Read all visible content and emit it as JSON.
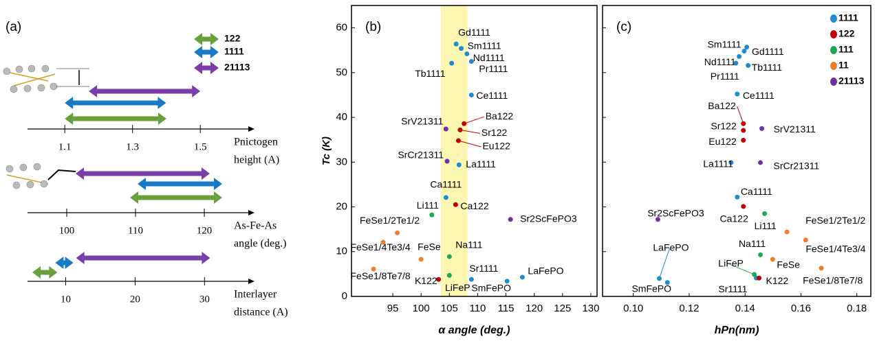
{
  "chart_data": [
    {
      "type": "range",
      "panel_label": "(a)",
      "series": [
        {
          "name": "122",
          "color": "#6a9f3a"
        },
        {
          "name": "1111",
          "color": "#1a7ac4"
        },
        {
          "name": "21113",
          "color": "#7a3ea8"
        }
      ],
      "axes": [
        {
          "label": [
            "Pnictogen",
            "height (A)"
          ],
          "xlim": [
            0.99,
            1.66
          ],
          "xticks": [
            1.1,
            1.3,
            1.5
          ],
          "ranges": [
            [
              1.1,
              1.4
            ],
            [
              1.1,
              1.399
            ],
            [
              1.171,
              1.5
            ]
          ]
        },
        {
          "label": [
            "As-Fe-As",
            "angle (deg.)"
          ],
          "xlim": [
            94.3,
            127.3
          ],
          "xticks": [
            100,
            110,
            120
          ],
          "ranges": [
            [
              109.2,
              122.6
            ],
            [
              110.3,
              122.6
            ],
            [
              101.3,
              120.8
            ]
          ]
        },
        {
          "label": [
            "Interlayer",
            "distance (A)"
          ],
          "xlim": [
            4.5,
            37.2
          ],
          "xticks": [
            10,
            20,
            30
          ],
          "ranges": [
            [
              5.2,
              8.8
            ],
            [
              8.5,
              11.1
            ],
            [
              11.5,
              30.8
            ]
          ]
        }
      ]
    },
    {
      "type": "scatter",
      "panel_label": "(b)",
      "xlabel": "α angle (deg.)",
      "ylabel": "Tc (K)",
      "xlim": [
        87.7,
        131.1
      ],
      "ylim": [
        0,
        65
      ],
      "xticks": [
        95,
        100,
        105,
        110,
        115,
        120,
        125,
        130
      ],
      "yticks": [
        0,
        10,
        20,
        30,
        40,
        50,
        60
      ],
      "highlight": [
        103.5,
        108.2
      ],
      "highlight_color": "#fbf7b0",
      "series": [
        {
          "color": "#1f8ccf",
          "labels": [
            "Gd1111",
            "Sm1111",
            "Nd1111",
            "Tb1111",
            "Pr1111",
            "Ce1111",
            "La1111",
            "Ca1111",
            "Sr1111",
            "LaFePO",
            "SmFePO"
          ],
          "x": [
            106.2,
            107.1,
            108.1,
            105.4,
            108.9,
            108.9,
            106.7,
            104.4,
            108.9,
            117.9,
            115.2
          ],
          "values": [
            56.4,
            55.4,
            54.2,
            52.1,
            52.5,
            45.0,
            29.4,
            22.1,
            3.8,
            4.3,
            3.4
          ]
        },
        {
          "color": "#c00000",
          "labels": [
            "Ba122",
            "Sr122",
            "Eu122",
            "Ca122",
            "K122"
          ],
          "x": [
            107.6,
            106.9,
            106.6,
            106.1,
            103.1
          ],
          "values": [
            38.6,
            37.2,
            34.8,
            20.5,
            3.8
          ]
        },
        {
          "color": "#1aaa55",
          "labels": [
            "Li111",
            "Na111",
            "LiFeP"
          ],
          "x": [
            101.9,
            105.0,
            105.0
          ],
          "values": [
            18.2,
            8.9,
            4.7
          ]
        },
        {
          "color": "#ed7d31",
          "labels": [
            "FeSe1/2Te1/2",
            "FeSe1/4Te3/4",
            "FeSe",
            "FeSe1/8Te7/8"
          ],
          "x": [
            95.8,
            93.3,
            100.0,
            91.6
          ],
          "values": [
            14.2,
            12.1,
            8.3,
            6.1
          ]
        },
        {
          "color": "#7030a0",
          "labels": [
            "SrV21311",
            "SrCr21311",
            "Sr2ScFePO3"
          ],
          "x": [
            104.4,
            104.6,
            115.8
          ],
          "values": [
            37.4,
            30.2,
            17.2
          ]
        }
      ]
    },
    {
      "type": "scatter",
      "panel_label": "(c)",
      "xlabel": "hPn(nm)",
      "legend": "upper right",
      "xlim": [
        0.089,
        0.185
      ],
      "ylim": [
        0,
        65
      ],
      "xticks": [
        {
          "value": 0.1,
          "label": "0.10"
        },
        0.12,
        0.14,
        0.16,
        0.18
      ],
      "yticks": [
        0,
        10,
        20,
        30,
        40,
        50,
        60
      ],
      "series": [
        {
          "name": "1111",
          "color": "#1f8ccf",
          "labels": [
            "Gd1111",
            "Sm1111",
            "Nd1111",
            "Tb1111",
            "Pr1111",
            "Ce1111",
            "La1111",
            "Ca1111",
            "Sr1111",
            "LaFePO",
            "SmFePO"
          ],
          "x": [
            0.1397,
            0.1406,
            0.1379,
            0.1411,
            0.1367,
            0.1372,
            0.135,
            0.1372,
            0.144,
            0.1093,
            0.1122
          ],
          "values": [
            54.8,
            55.7,
            53.6,
            51.6,
            52.1,
            45.2,
            29.9,
            22.2,
            4.1,
            4.0,
            3.1
          ]
        },
        {
          "name": "122",
          "color": "#c00000",
          "labels": [
            "Ba122",
            "Sr122",
            "Eu122",
            "Ca122",
            "K122"
          ],
          "x": [
            0.1394,
            0.1394,
            0.1394,
            0.1394,
            0.145
          ],
          "values": [
            38.6,
            37.1,
            34.9,
            20.1,
            4.1
          ]
        },
        {
          "name": "111",
          "color": "#1aaa55",
          "labels": [
            "Li111",
            "Na111",
            "LiFeP"
          ],
          "x": [
            0.147,
            0.1455,
            0.1433
          ],
          "values": [
            18.5,
            9.3,
            4.9
          ]
        },
        {
          "name": "11",
          "color": "#ed7d31",
          "labels": [
            "FeSe1/2Te1/2",
            "FeSe1/4Te3/4",
            "FeSe",
            "FeSe1/8Te7/8"
          ],
          "x": [
            0.155,
            0.1617,
            0.1499,
            0.1673
          ],
          "values": [
            14.4,
            12.6,
            8.3,
            6.3
          ]
        },
        {
          "name": "21113",
          "color": "#7030a0",
          "labels": [
            "SrV21311",
            "SrCr21311",
            "Sr2ScFePO3"
          ],
          "x": [
            0.146,
            0.1455,
            0.1088
          ],
          "values": [
            37.5,
            29.9,
            17.2
          ]
        }
      ]
    }
  ]
}
